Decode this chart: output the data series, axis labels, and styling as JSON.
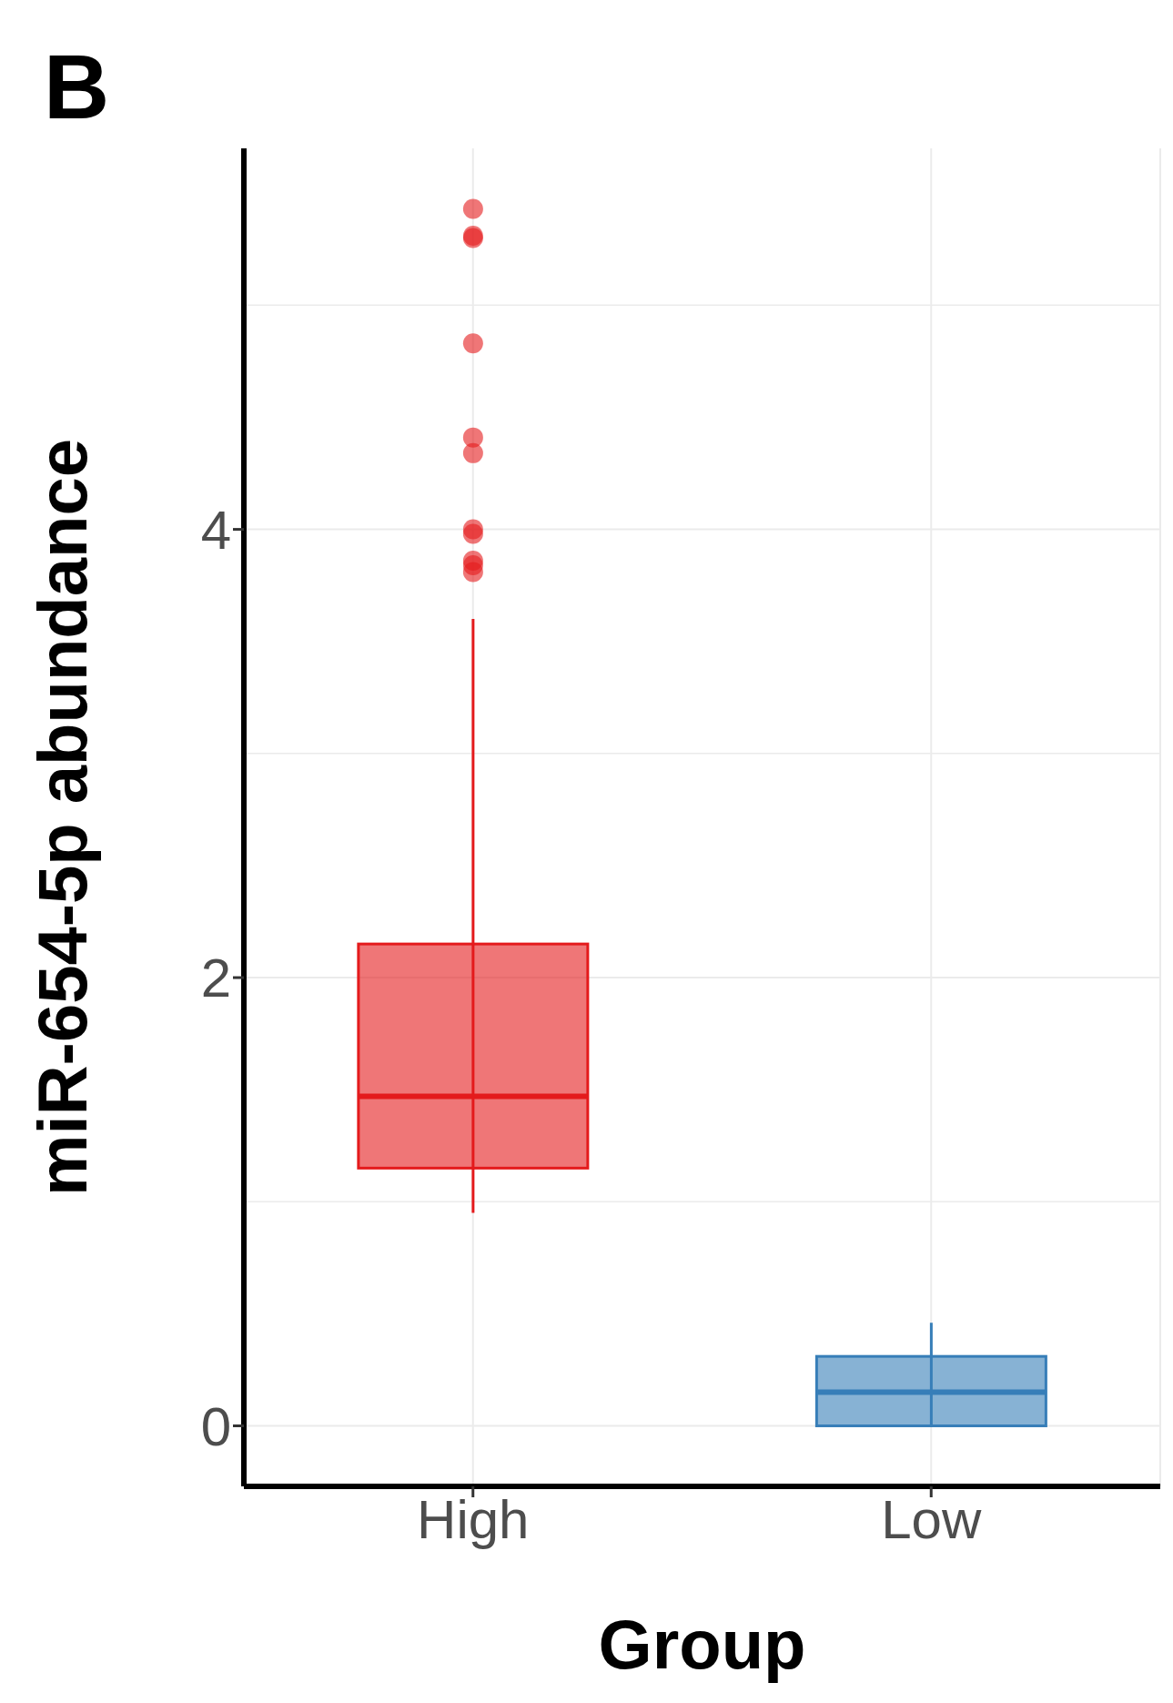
{
  "chart_data": {
    "type": "box",
    "annotations": [
      "B"
    ],
    "xlabel": "Group",
    "ylabel": "miR-654-5p abundance",
    "categories": [
      "High",
      "Low"
    ],
    "boxes": [
      {
        "low": 0.95,
        "q1": 1.15,
        "median": 1.47,
        "q3": 2.15,
        "high": 3.6,
        "outliers": [
          5.43,
          5.31,
          5.3,
          4.83,
          4.41,
          4.34,
          4.0,
          3.98,
          3.86,
          3.84,
          3.81
        ]
      },
      {
        "low": 0,
        "q1": 0,
        "median": 0.15,
        "q3": 0.31,
        "high": 0.46
      }
    ],
    "colors": [
      "#e41a1c",
      "#377eb8"
    ],
    "ylim": [
      -0.27,
      5.7
    ],
    "yticks": [
      0,
      2,
      4
    ],
    "grid": true
  }
}
